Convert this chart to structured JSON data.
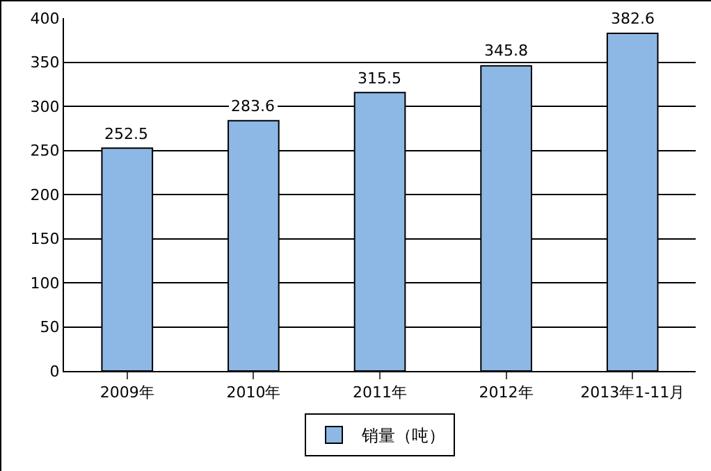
{
  "chart_data": {
    "type": "bar",
    "categories": [
      "2009年",
      "2010年",
      "2011年",
      "2012年",
      "2013年1-11月"
    ],
    "series": [
      {
        "name": "销量（吨）",
        "color": "#8db8e6",
        "values": [
          252.5,
          283.6,
          315.5,
          345.8,
          382.6
        ]
      }
    ],
    "ylim": [
      0,
      400
    ],
    "yticks": [
      0,
      50,
      100,
      150,
      200,
      250,
      300,
      350,
      400
    ],
    "grid": "y",
    "legend": "bottom",
    "data_labels": true
  }
}
